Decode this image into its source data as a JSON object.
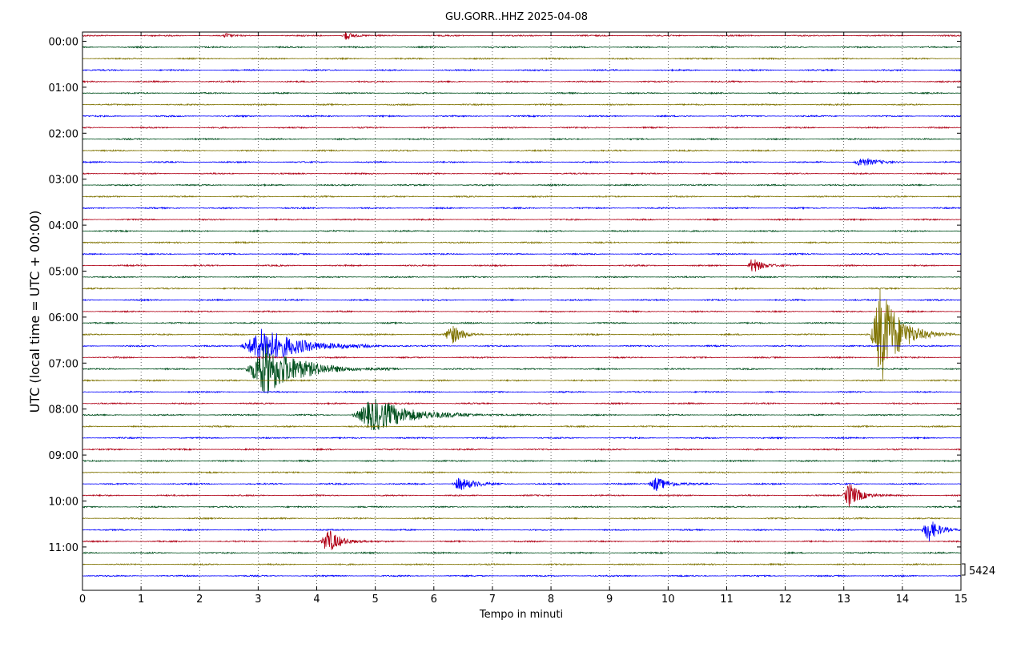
{
  "chart_data": {
    "type": "line",
    "title": "GU.GORR..HHZ 2025-04-08",
    "xlabel": "Tempo in minuti",
    "ylabel": "UTC (local time = UTC + 00:00)",
    "xlim": [
      0,
      15
    ],
    "x_ticks": [
      "0",
      "1",
      "2",
      "3",
      "4",
      "5",
      "6",
      "7",
      "8",
      "9",
      "10",
      "11",
      "12",
      "13",
      "14",
      "15"
    ],
    "y_ticks": [
      "00:00",
      "01:00",
      "02:00",
      "03:00",
      "04:00",
      "05:00",
      "06:00",
      "07:00",
      "08:00",
      "09:00",
      "10:00",
      "11:00"
    ],
    "trace_interval_minutes": 15,
    "trace_count": 48,
    "trace_colors": [
      "#b00016",
      "#00501e",
      "#7f7300",
      "#0000ff"
    ],
    "grid": true,
    "scale_label": "5424",
    "events": [
      {
        "trace": 0,
        "minute": 2.45,
        "amp": 0.3,
        "dur": 0.12
      },
      {
        "trace": 0,
        "minute": 4.5,
        "amp": 0.6,
        "dur": 0.18
      },
      {
        "trace": 11,
        "minute": 13.3,
        "amp": 0.6,
        "dur": 0.35
      },
      {
        "trace": 20,
        "minute": 11.45,
        "amp": 1.0,
        "dur": 0.25
      },
      {
        "trace": 26,
        "minute": 6.3,
        "amp": 1.3,
        "dur": 0.3
      },
      {
        "trace": 26,
        "minute": 13.65,
        "amp": 6.0,
        "dur": 0.5
      },
      {
        "trace": 27,
        "minute": 3.1,
        "amp": 2.2,
        "dur": 1.0
      },
      {
        "trace": 29,
        "minute": 3.15,
        "amp": 3.2,
        "dur": 0.9
      },
      {
        "trace": 33,
        "minute": 5.0,
        "amp": 2.0,
        "dur": 1.0
      },
      {
        "trace": 39,
        "minute": 6.45,
        "amp": 0.8,
        "dur": 0.4
      },
      {
        "trace": 39,
        "minute": 9.8,
        "amp": 0.9,
        "dur": 0.35
      },
      {
        "trace": 40,
        "minute": 13.1,
        "amp": 1.6,
        "dur": 0.3
      },
      {
        "trace": 43,
        "minute": 14.45,
        "amp": 1.5,
        "dur": 0.3
      },
      {
        "trace": 44,
        "minute": 4.2,
        "amp": 1.5,
        "dur": 0.35
      }
    ]
  }
}
